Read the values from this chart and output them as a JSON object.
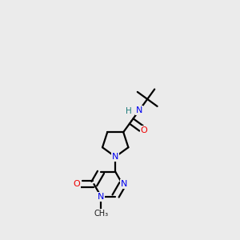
{
  "background_color": "#ebebeb",
  "bond_color": "#1a1a1a",
  "atom_colors": {
    "N": "#0000ee",
    "O": "#ee0000",
    "NH": "#1a7a7a",
    "C": "#1a1a1a"
  },
  "figsize": [
    3.0,
    3.0
  ],
  "dpi": 100,
  "bond_lw": 1.6
}
